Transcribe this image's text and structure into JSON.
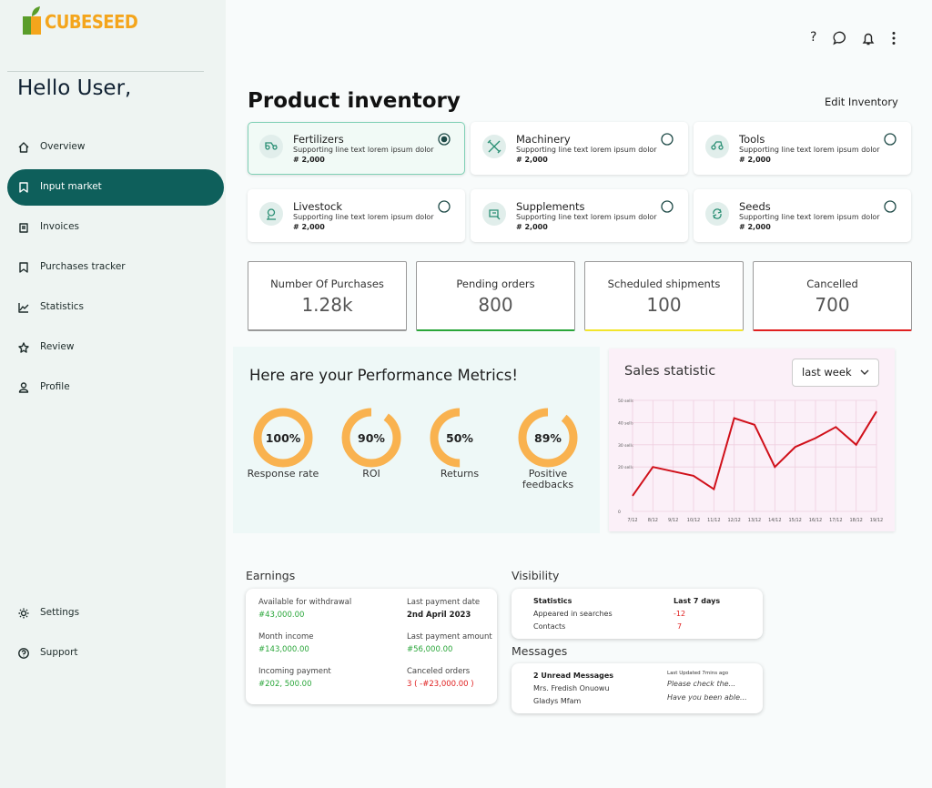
{
  "brand": "CUBESEED",
  "greeting": "Hello User,",
  "nav": [
    {
      "label": "Overview",
      "active": false
    },
    {
      "label": "Input market",
      "active": true
    },
    {
      "label": "Invoices",
      "active": false
    },
    {
      "label": "Purchases tracker",
      "active": false
    },
    {
      "label": "Statistics",
      "active": false
    },
    {
      "label": "Review",
      "active": false
    },
    {
      "label": "Profile",
      "active": false
    }
  ],
  "bottom_nav": [
    {
      "label": "Settings"
    },
    {
      "label": "Support"
    }
  ],
  "toolbar": {
    "help": "?"
  },
  "page_title": "Product inventory",
  "edit_button": "Edit Inventory",
  "products": [
    {
      "name": "Fertilizers",
      "description": "Supporting line text lorem ipsum dolor",
      "quantity": "# 2,000",
      "selected": true
    },
    {
      "name": "Machinery",
      "description": "Supporting line text lorem ipsum dolor",
      "quantity": "# 2,000",
      "selected": false
    },
    {
      "name": "Tools",
      "description": "Supporting line text lorem ipsum dolor",
      "quantity": "# 2,000",
      "selected": false
    },
    {
      "name": "Livestock",
      "description": "Supporting line text lorem ipsum dolor",
      "quantity": "# 2,000",
      "selected": false
    },
    {
      "name": "Supplements",
      "description": "Supporting line text lorem ipsum dolor",
      "quantity": "# 2,000",
      "selected": false
    },
    {
      "name": "Seeds",
      "description": "Supporting line text lorem ipsum dolor",
      "quantity": "# 2,000",
      "selected": false
    }
  ],
  "stats": [
    {
      "label": "Number Of Purchases",
      "value": "1.28k",
      "color": "#9a9a9a"
    },
    {
      "label": "Pending orders",
      "value": "800",
      "color": "#2aa63a"
    },
    {
      "label": "Scheduled shipments",
      "value": "100",
      "color": "#f2e52c"
    },
    {
      "label": "Cancelled",
      "value": "700",
      "color": "#e02020"
    }
  ],
  "chart_data": [
    {
      "type": "gauge",
      "title": "Here are your Performance Metrics!",
      "categories": [
        "Response rate",
        "ROI",
        "Returns",
        "Positive feedbacks"
      ],
      "values": [
        100,
        90,
        50,
        89
      ],
      "value_labels": [
        "100%",
        "90%",
        "50%",
        "89%"
      ],
      "ylim": [
        0,
        100
      ],
      "color": "#f9b24f"
    },
    {
      "type": "line",
      "title": "Sales statistic",
      "dropdown": "last week",
      "categories": [
        "7/12",
        "8/12",
        "9/12",
        "10/12",
        "11/12",
        "12/12",
        "13/12",
        "14/12",
        "15/12",
        "16/12",
        "17/12",
        "18/12",
        "19/12"
      ],
      "values": [
        7,
        20,
        18,
        16,
        10,
        42,
        39,
        20,
        29,
        33,
        38,
        30,
        45
      ],
      "ylim": [
        0,
        50
      ],
      "yticks": [
        {
          "value": 50,
          "label": "50 sells"
        },
        {
          "value": 40,
          "label": "40 sells"
        },
        {
          "value": 30,
          "label": "30 sells"
        },
        {
          "value": 20,
          "label": "20 sells"
        },
        0
      ],
      "grid": true,
      "color": "#d0101a"
    }
  ],
  "earnings": {
    "title": "Earnings",
    "items": [
      {
        "label": "Available for withdrawal",
        "value": "#43,000.00",
        "color": "#2aa63a"
      },
      {
        "label": "Last payment date",
        "value": "2nd April 2023",
        "color": "#1d1d1d"
      },
      {
        "label": "Month income",
        "value": "#143,000.00",
        "color": "#2aa63a"
      },
      {
        "label": "Last payment amount",
        "value": "#56,000.00",
        "color": "#2aa63a"
      },
      {
        "label": "Incoming payment",
        "value": "#202, 500.00",
        "color": "#2aa63a"
      },
      {
        "label": "Canceled orders",
        "value": "3 ( -#23,000.00 )",
        "color": "#e02020"
      }
    ]
  },
  "visibility": {
    "title": "Visibility",
    "header": [
      "Statistics",
      "Last 7 days"
    ],
    "rows": [
      [
        "Appeared in searches",
        "-12"
      ],
      [
        "Contacts",
        "7"
      ]
    ]
  },
  "messages": {
    "title": "Messages",
    "unread": "2 Unread Messages",
    "updated": "Last Updated 7mins ago",
    "items": [
      {
        "sender": "Mrs. Fredish Onuowu",
        "preview": "Please check the..."
      },
      {
        "sender": "Gladys Mfam",
        "preview": "Have you been able..."
      }
    ]
  }
}
